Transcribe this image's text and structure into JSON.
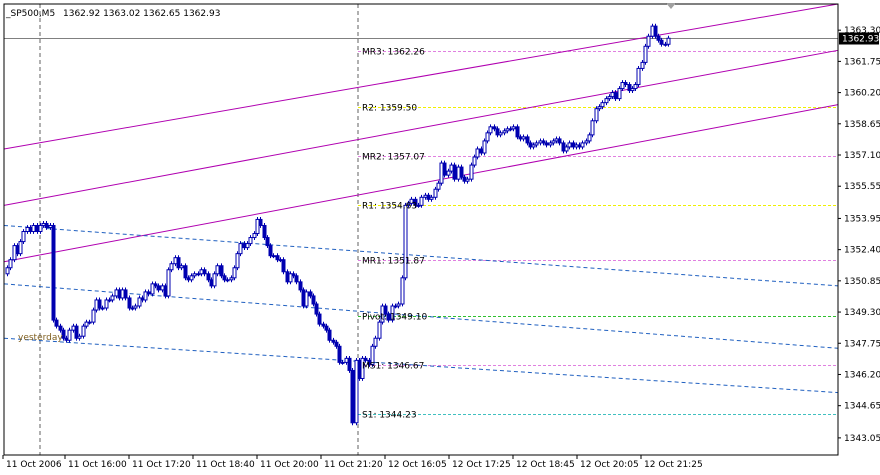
{
  "header": {
    "symbol": "_SP500,M5",
    "ohlc": "1362.92 1363.02 1362.65 1362.93"
  },
  "colors": {
    "background": "#ffffff",
    "axis": "#000000",
    "candle": "#0000b0",
    "bid_line": "#808080",
    "current_tag_bg": "#000000",
    "current_tag_fg": "#ffffff",
    "channel_magenta": "#b000b0",
    "channel_blue": "#2060c0",
    "pivot_magenta": "#e080e0",
    "pivot_yellow": "#f0f000",
    "pivot_green": "#30c030",
    "pivot_cyan": "#40c0c0",
    "separator": "#606060",
    "label": "#000000"
  },
  "chart_data": {
    "type": "candlestick",
    "title": "_SP500,M5",
    "ylim": [
      1342.2,
      1364.6
    ],
    "current_price": "1362.93",
    "yticks": [
      "1363.30",
      "1361.75",
      "1360.20",
      "1358.65",
      "1357.10",
      "1355.55",
      "1353.95",
      "1352.40",
      "1350.85",
      "1349.30",
      "1347.75",
      "1346.20",
      "1344.65",
      "1343.05"
    ],
    "xticks": [
      "11 Oct 2006",
      "11 Oct 16:00",
      "11 Oct 17:20",
      "11 Oct 18:40",
      "11 Oct 20:00",
      "11 Oct 21:20",
      "12 Oct 16:05",
      "12 Oct 17:25",
      "12 Oct 18:45",
      "12 Oct 20:05",
      "12 Oct 21:25"
    ],
    "levels": [
      {
        "label": "MR3: 1362.26",
        "value": 1362.26,
        "color": "#e080e0"
      },
      {
        "label": "R2: 1359.50",
        "value": 1359.5,
        "color": "#f0f000"
      },
      {
        "label": "MR2: 1357.07",
        "value": 1357.07,
        "color": "#e080e0"
      },
      {
        "label": "R1: 1354.63",
        "value": 1354.63,
        "color": "#f0f000"
      },
      {
        "label": "MR1: 1351.87",
        "value": 1351.87,
        "color": "#e080e0"
      },
      {
        "label": "Pivot: 1349.10",
        "value": 1349.1,
        "color": "#30c030"
      },
      {
        "label": "MS1: 1346.67",
        "value": 1346.67,
        "color": "#e080e0"
      },
      {
        "label": "S1: 1344.23",
        "value": 1344.23,
        "color": "#40c0c0"
      }
    ],
    "annotations": [
      "yesterday"
    ],
    "candles": [
      1351.5,
      1351.9,
      1352.6,
      1352.2,
      1352.8,
      1353.3,
      1353.5,
      1353.3,
      1353.6,
      1353.3,
      1353.6,
      1353.7,
      1353.5,
      1353.6,
      1348.9,
      1348.6,
      1348.4,
      1348.0,
      1347.9,
      1348.4,
      1348.6,
      1348.0,
      1348.1,
      1348.6,
      1348.8,
      1348.8,
      1349.4,
      1349.9,
      1349.5,
      1349.5,
      1349.9,
      1349.9,
      1350.1,
      1350.4,
      1350.0,
      1350.4,
      1350.0,
      1349.5,
      1349.5,
      1349.6,
      1350.0,
      1349.9,
      1350.3,
      1350.2,
      1350.7,
      1350.6,
      1350.4,
      1350.6,
      1350.1,
      1351.4,
      1351.7,
      1352.0,
      1351.5,
      1351.6,
      1351.0,
      1350.9,
      1351.1,
      1351.2,
      1351.2,
      1351.4,
      1351.2,
      1350.9,
      1350.6,
      1351.2,
      1351.6,
      1351.1,
      1350.9,
      1350.9,
      1351.0,
      1351.5,
      1352.2,
      1352.7,
      1352.5,
      1352.7,
      1353.0,
      1353.2,
      1353.9,
      1353.6,
      1353.0,
      1352.6,
      1352.1,
      1352.1,
      1351.9,
      1351.9,
      1351.3,
      1350.8,
      1351.2,
      1351.1,
      1350.8,
      1350.4,
      1349.6,
      1350.3,
      1350.1,
      1349.7,
      1349.2,
      1348.7,
      1348.6,
      1348.4,
      1347.9,
      1347.8,
      1347.6,
      1346.8,
      1346.8,
      1347.0,
      1346.4,
      1343.8,
      1346.9,
      1346.0,
      1347.0,
      1346.9,
      1346.7,
      1347.6,
      1348.0,
      1348.8,
      1349.6,
      1349.2,
      1348.9,
      1349.6,
      1349.6,
      1349.7,
      1351.0,
      1354.6,
      1354.7,
      1354.9,
      1354.6,
      1354.6,
      1355.0,
      1355.1,
      1354.9,
      1355.0,
      1355.4,
      1355.7,
      1356.7,
      1356.1,
      1356.3,
      1356.6,
      1355.9,
      1356.5,
      1356.0,
      1355.8,
      1355.9,
      1356.6,
      1357.0,
      1357.4,
      1357.2,
      1357.8,
      1358.2,
      1358.5,
      1358.4,
      1358.1,
      1358.2,
      1358.3,
      1358.4,
      1358.4,
      1358.5,
      1358.0,
      1357.9,
      1358.0,
      1357.7,
      1357.5,
      1357.6,
      1357.7,
      1357.8,
      1357.7,
      1357.6,
      1357.7,
      1357.8,
      1357.9,
      1357.7,
      1357.3,
      1357.5,
      1357.7,
      1357.5,
      1357.6,
      1357.5,
      1357.7,
      1357.8,
      1358.1,
      1358.8,
      1359.4,
      1359.5,
      1359.7,
      1359.9,
      1360.0,
      1360.2,
      1359.9,
      1360.4,
      1360.7,
      1360.6,
      1360.3,
      1360.4,
      1360.6,
      1361.4,
      1361.7,
      1362.5,
      1363.0,
      1363.5,
      1363.0,
      1362.8,
      1362.6,
      1362.6,
      1362.9
    ]
  }
}
